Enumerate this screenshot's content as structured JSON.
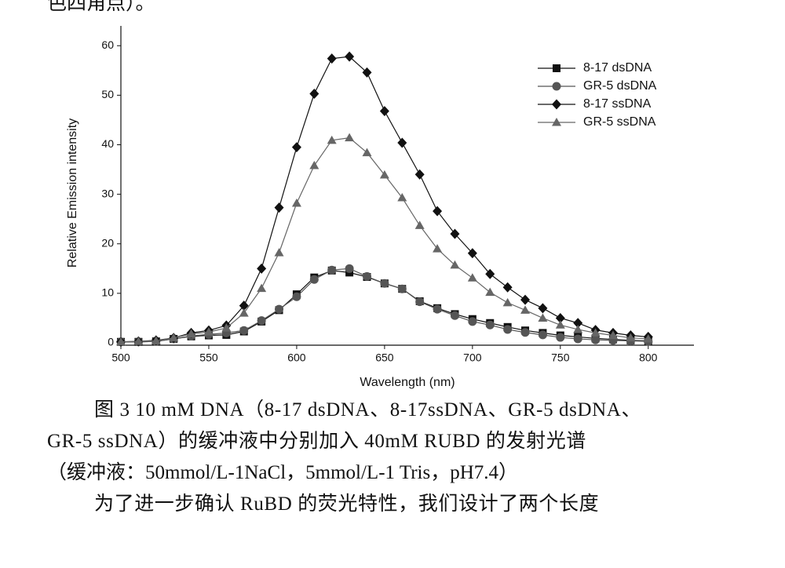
{
  "text_top": "色四角点）。",
  "chart_data": {
    "type": "line",
    "x_label": "Wavelength (nm)",
    "y_label": "Relative Emission intensity",
    "x": [
      500,
      510,
      520,
      530,
      540,
      550,
      560,
      570,
      580,
      590,
      600,
      610,
      620,
      630,
      640,
      650,
      660,
      670,
      680,
      690,
      700,
      710,
      720,
      730,
      740,
      750,
      760,
      770,
      780,
      790,
      800
    ],
    "series": [
      {
        "name": "8-17 dsDNA",
        "color": "#111111",
        "marker": "square",
        "values": [
          0.2,
          0.2,
          0.3,
          0.8,
          1.3,
          1.5,
          1.6,
          2.3,
          4.3,
          6.6,
          9.8,
          13.2,
          14.6,
          14.2,
          13.3,
          12,
          10.9,
          8.4,
          7,
          5.8,
          4.8,
          4,
          3.2,
          2.5,
          2,
          1.5,
          1.2,
          0.9,
          0.7,
          0.5,
          0.4
        ]
      },
      {
        "name": "GR-5 dsDNA",
        "color": "#555555",
        "marker": "circle",
        "values": [
          0.2,
          0.2,
          0.3,
          0.8,
          1.4,
          1.7,
          2,
          2.5,
          4.5,
          6.8,
          9.3,
          12.8,
          14.7,
          15,
          13.4,
          12,
          10.9,
          8.3,
          6.8,
          5.5,
          4.3,
          3.6,
          2.7,
          2.1,
          1.6,
          1.1,
          0.8,
          0.6,
          0.5,
          0.4,
          0.3
        ]
      },
      {
        "name": "8-17 ssDNA",
        "color": "#111111",
        "marker": "diamond",
        "values": [
          0.2,
          0.3,
          0.5,
          1,
          2,
          2.5,
          3.5,
          7.5,
          15,
          27.3,
          39.5,
          50.3,
          57.4,
          57.8,
          54.6,
          46.8,
          40.4,
          34,
          26.6,
          22,
          18.1,
          13.9,
          11.2,
          8.7,
          7,
          5,
          4,
          2.6,
          2,
          1.5,
          1.2
        ]
      },
      {
        "name": "GR-5 ssDNA",
        "color": "#666666",
        "marker": "triangle",
        "values": [
          0.2,
          0.3,
          0.4,
          1,
          1.8,
          2.2,
          3,
          6,
          11,
          18.2,
          28.2,
          35.8,
          40.9,
          41.4,
          38.4,
          33.9,
          29.3,
          23.7,
          19,
          15.7,
          13.1,
          10.2,
          8.1,
          6.6,
          5,
          3.6,
          2.7,
          2,
          1.5,
          1,
          0.8
        ]
      }
    ],
    "xlim": [
      500,
      826
    ],
    "xticks": [
      500,
      550,
      600,
      650,
      700,
      750,
      800
    ],
    "ylim": [
      0,
      64
    ],
    "yticks": [
      0,
      10,
      20,
      30,
      40,
      50,
      60
    ],
    "legend": "upper right"
  },
  "caption": [
    "图 3 10 mM DNA（8-17 dsDNA、8-17ssDNA、GR-5 dsDNA、",
    "GR-5 ssDNA）的缓冲液中分别加入 40mM RUBD 的发射光谱",
    "（缓冲液：50mmol/L-1NaCl，5mmol/L-1 Tris，pH7.4）"
  ],
  "paragraph": "为了进一步确认 RuBD 的荧光特性，我们设计了两个长度"
}
